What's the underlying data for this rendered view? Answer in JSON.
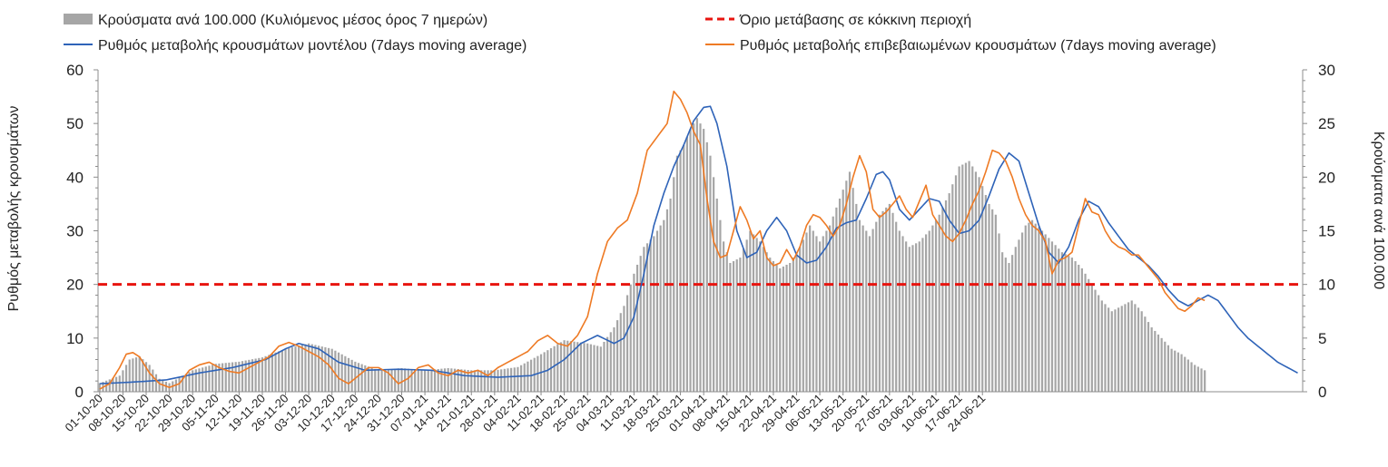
{
  "chart_data": {
    "type": "bar",
    "legend": [
      {
        "key": "cases",
        "label": "Κρούσματα ανά 100.000  (Κυλιόμενος μέσος όρος 7 ημερών)",
        "color": "#a6a6a6",
        "kind": "bar"
      },
      {
        "key": "threshold",
        "label": "Όριο μετάβασης σε κόκκινη περιοχή",
        "color": "#e8140f",
        "kind": "dashed-line"
      },
      {
        "key": "model",
        "label": "Ρυθμός μεταβολής κρουσμάτων μοντέλου (7days moving average)",
        "color": "#2e63b8",
        "kind": "line"
      },
      {
        "key": "confirmed",
        "label": "Ρυθμός μεταβολής επιβεβαιωμένων κρουσμάτων (7days moving average)",
        "color": "#ee7a24",
        "kind": "line"
      }
    ],
    "ylabel_left": "Ρυθμός μεταβολής κρουσμάτων",
    "ylabel_right": "Κρούσματα ανά 100.000",
    "ylim_left": [
      0,
      60
    ],
    "ylim_right": [
      0,
      30
    ],
    "left_ticks": [
      "0",
      "10",
      "20",
      "30",
      "40",
      "50",
      "60"
    ],
    "right_ticks": [
      "0",
      "5",
      "10",
      "15",
      "20",
      "25",
      "30"
    ],
    "threshold_left": 20,
    "x_start_day": 0,
    "x_end_day": 273,
    "x_tick_labels": [
      "01-10-20",
      "08-10-20",
      "15-10-20",
      "22-10-20",
      "29-10-20",
      "05-11-20",
      "12-11-20",
      "19-11-20",
      "26-11-20",
      "03-12-20",
      "10-12-20",
      "17-12-20",
      "24-12-20",
      "31-12-20",
      "07-01-21",
      "14-01-21",
      "21-01-21",
      "28-01-21",
      "04-02-21",
      "11-02-21",
      "18-02-21",
      "25-02-21",
      "04-03-21",
      "11-03-21",
      "18-03-21",
      "25-03-21",
      "01-04-21",
      "08-04-21",
      "15-04-21",
      "22-04-21",
      "29-04-21",
      "06-05-21",
      "13-05-21",
      "20-05-21",
      "27-05-21",
      "03-06-21",
      "10-06-21",
      "17-06-21",
      "24-06-21"
    ],
    "bars_right_axis_keypoints": [
      [
        0,
        0.8
      ],
      [
        6,
        1.5
      ],
      [
        9,
        3.0
      ],
      [
        12,
        3.3
      ],
      [
        15,
        2.5
      ],
      [
        18,
        1.2
      ],
      [
        21,
        0.8
      ],
      [
        28,
        2.0
      ],
      [
        35,
        2.6
      ],
      [
        42,
        2.8
      ],
      [
        49,
        3.2
      ],
      [
        56,
        4.0
      ],
      [
        63,
        4.5
      ],
      [
        70,
        4.0
      ],
      [
        77,
        2.8
      ],
      [
        84,
        2.0
      ],
      [
        91,
        2.2
      ],
      [
        98,
        2.0
      ],
      [
        105,
        2.2
      ],
      [
        112,
        2.0
      ],
      [
        119,
        2.0
      ],
      [
        126,
        2.3
      ],
      [
        133,
        3.5
      ],
      [
        140,
        4.8
      ],
      [
        147,
        4.5
      ],
      [
        151,
        4.2
      ],
      [
        155,
        6.0
      ],
      [
        158,
        8.0
      ],
      [
        161,
        11.0
      ],
      [
        164,
        13.5
      ],
      [
        167,
        14.5
      ],
      [
        170,
        16.0
      ],
      [
        172,
        18.0
      ],
      [
        174,
        22.0
      ],
      [
        176,
        23.0
      ],
      [
        178,
        24.5
      ],
      [
        180,
        25.5
      ],
      [
        182,
        24.5
      ],
      [
        184,
        22.0
      ],
      [
        186,
        18.0
      ],
      [
        188,
        14.0
      ],
      [
        190,
        12.0
      ],
      [
        193,
        12.5
      ],
      [
        196,
        15.0
      ],
      [
        199,
        14.0
      ],
      [
        202,
        12.5
      ],
      [
        205,
        11.5
      ],
      [
        208,
        12.0
      ],
      [
        211,
        13.5
      ],
      [
        214,
        15.5
      ],
      [
        217,
        14.0
      ],
      [
        220,
        15.5
      ],
      [
        223,
        18.0
      ],
      [
        226,
        20.5
      ],
      [
        229,
        16.0
      ],
      [
        232,
        14.5
      ],
      [
        235,
        16.5
      ],
      [
        238,
        17.5
      ],
      [
        241,
        15.0
      ],
      [
        244,
        13.5
      ],
      [
        247,
        14.0
      ],
      [
        250,
        15.0
      ],
      [
        253,
        16.5
      ],
      [
        256,
        18.5
      ],
      [
        259,
        21.0
      ],
      [
        262,
        21.5
      ],
      [
        265,
        20.0
      ],
      [
        268,
        17.5
      ],
      [
        270,
        16.5
      ],
      [
        272,
        13.0
      ],
      [
        274,
        12.0
      ],
      [
        276,
        13.5
      ],
      [
        279,
        15.5
      ],
      [
        281,
        16.0
      ],
      [
        284,
        15.0
      ],
      [
        287,
        14.0
      ],
      [
        290,
        13.0
      ],
      [
        293,
        12.5
      ],
      [
        296,
        11.5
      ],
      [
        299,
        10.0
      ],
      [
        302,
        8.5
      ],
      [
        305,
        7.5
      ],
      [
        308,
        8.0
      ],
      [
        311,
        8.5
      ],
      [
        314,
        7.5
      ],
      [
        317,
        6.0
      ],
      [
        320,
        5.0
      ],
      [
        323,
        4.0
      ],
      [
        326,
        3.5
      ],
      [
        330,
        2.5
      ],
      [
        333,
        2.0
      ]
    ],
    "model_left_axis_keypoints": [
      [
        0,
        1.5
      ],
      [
        10,
        1.8
      ],
      [
        20,
        2.2
      ],
      [
        30,
        3.5
      ],
      [
        40,
        4.5
      ],
      [
        50,
        6.0
      ],
      [
        56,
        8.0
      ],
      [
        60,
        9.0
      ],
      [
        66,
        8.0
      ],
      [
        72,
        5.5
      ],
      [
        80,
        4.0
      ],
      [
        90,
        4.2
      ],
      [
        100,
        4.0
      ],
      [
        110,
        3.0
      ],
      [
        120,
        2.7
      ],
      [
        130,
        3.0
      ],
      [
        135,
        4.0
      ],
      [
        140,
        6.0
      ],
      [
        145,
        9.0
      ],
      [
        150,
        10.5
      ],
      [
        155,
        9.0
      ],
      [
        158,
        10.0
      ],
      [
        161,
        14.0
      ],
      [
        164,
        22.0
      ],
      [
        167,
        31.0
      ],
      [
        170,
        37.0
      ],
      [
        173,
        42.0
      ],
      [
        176,
        46.0
      ],
      [
        179,
        50.5
      ],
      [
        182,
        53.0
      ],
      [
        184,
        53.2
      ],
      [
        186,
        50.0
      ],
      [
        189,
        42.0
      ],
      [
        192,
        30.0
      ],
      [
        195,
        25.0
      ],
      [
        198,
        26.0
      ],
      [
        201,
        30.0
      ],
      [
        204,
        32.5
      ],
      [
        207,
        30.0
      ],
      [
        210,
        25.5
      ],
      [
        213,
        24.0
      ],
      [
        216,
        24.5
      ],
      [
        219,
        27.0
      ],
      [
        222,
        30.5
      ],
      [
        225,
        31.5
      ],
      [
        228,
        32.0
      ],
      [
        231,
        36.0
      ],
      [
        234,
        40.5
      ],
      [
        236,
        41.0
      ],
      [
        238,
        39.5
      ],
      [
        241,
        34.0
      ],
      [
        244,
        32.0
      ],
      [
        247,
        34.0
      ],
      [
        250,
        36.0
      ],
      [
        253,
        35.5
      ],
      [
        256,
        32.0
      ],
      [
        259,
        29.5
      ],
      [
        262,
        30.0
      ],
      [
        265,
        32.0
      ],
      [
        268,
        36.5
      ],
      [
        271,
        41.5
      ],
      [
        274,
        44.5
      ],
      [
        277,
        43.0
      ],
      [
        280,
        37.0
      ],
      [
        283,
        31.0
      ],
      [
        286,
        26.0
      ],
      [
        289,
        24.0
      ],
      [
        292,
        27.0
      ],
      [
        295,
        32.0
      ],
      [
        298,
        35.5
      ],
      [
        301,
        34.5
      ],
      [
        304,
        31.5
      ],
      [
        307,
        29.0
      ],
      [
        310,
        26.5
      ],
      [
        313,
        25.0
      ],
      [
        316,
        23.5
      ],
      [
        319,
        21.5
      ],
      [
        322,
        19.0
      ],
      [
        325,
        17.0
      ],
      [
        328,
        16.0
      ],
      [
        331,
        17.0
      ],
      [
        334,
        18.0
      ],
      [
        337,
        17.0
      ],
      [
        340,
        14.5
      ],
      [
        343,
        12.0
      ],
      [
        346,
        10.0
      ],
      [
        349,
        8.5
      ],
      [
        352,
        7.0
      ],
      [
        355,
        5.5
      ],
      [
        358,
        4.5
      ],
      [
        361,
        3.5
      ]
    ],
    "confirmed_left_axis_keypoints": [
      [
        0,
        0.5
      ],
      [
        3,
        1.5
      ],
      [
        6,
        4.5
      ],
      [
        8,
        7.0
      ],
      [
        10,
        7.3
      ],
      [
        12,
        6.5
      ],
      [
        15,
        3.5
      ],
      [
        18,
        1.5
      ],
      [
        21,
        0.8
      ],
      [
        24,
        1.5
      ],
      [
        27,
        4.0
      ],
      [
        30,
        5.0
      ],
      [
        33,
        5.5
      ],
      [
        36,
        4.5
      ],
      [
        39,
        3.8
      ],
      [
        42,
        3.5
      ],
      [
        45,
        4.5
      ],
      [
        48,
        5.5
      ],
      [
        51,
        6.5
      ],
      [
        54,
        8.5
      ],
      [
        57,
        9.2
      ],
      [
        60,
        8.5
      ],
      [
        63,
        7.5
      ],
      [
        66,
        6.5
      ],
      [
        69,
        5.0
      ],
      [
        72,
        2.5
      ],
      [
        75,
        1.5
      ],
      [
        78,
        3.0
      ],
      [
        81,
        4.5
      ],
      [
        84,
        4.5
      ],
      [
        87,
        3.5
      ],
      [
        90,
        1.5
      ],
      [
        93,
        2.5
      ],
      [
        96,
        4.5
      ],
      [
        99,
        5.0
      ],
      [
        102,
        3.5
      ],
      [
        105,
        3.0
      ],
      [
        108,
        4.0
      ],
      [
        111,
        3.5
      ],
      [
        114,
        4.0
      ],
      [
        117,
        3.0
      ],
      [
        120,
        4.5
      ],
      [
        123,
        5.5
      ],
      [
        126,
        6.5
      ],
      [
        129,
        7.5
      ],
      [
        132,
        9.5
      ],
      [
        135,
        10.5
      ],
      [
        138,
        9.0
      ],
      [
        141,
        8.5
      ],
      [
        144,
        10.5
      ],
      [
        147,
        14.0
      ],
      [
        150,
        22.0
      ],
      [
        153,
        28.0
      ],
      [
        156,
        30.5
      ],
      [
        159,
        32.0
      ],
      [
        162,
        37.0
      ],
      [
        165,
        45.0
      ],
      [
        168,
        47.5
      ],
      [
        171,
        50.0
      ],
      [
        173,
        56.0
      ],
      [
        175,
        54.5
      ],
      [
        177,
        52.0
      ],
      [
        179,
        48.5
      ],
      [
        181,
        46.0
      ],
      [
        183,
        36.0
      ],
      [
        185,
        28.0
      ],
      [
        187,
        25.0
      ],
      [
        189,
        25.5
      ],
      [
        191,
        30.0
      ],
      [
        193,
        34.5
      ],
      [
        195,
        32.0
      ],
      [
        197,
        28.5
      ],
      [
        199,
        30.0
      ],
      [
        201,
        25.0
      ],
      [
        203,
        23.5
      ],
      [
        205,
        24.0
      ],
      [
        207,
        26.5
      ],
      [
        209,
        24.5
      ],
      [
        211,
        27.0
      ],
      [
        213,
        31.0
      ],
      [
        215,
        33.0
      ],
      [
        217,
        32.5
      ],
      [
        219,
        31.0
      ],
      [
        221,
        29.0
      ],
      [
        223,
        31.0
      ],
      [
        225,
        35.0
      ],
      [
        227,
        40.0
      ],
      [
        229,
        44.0
      ],
      [
        231,
        41.0
      ],
      [
        233,
        34.0
      ],
      [
        235,
        32.5
      ],
      [
        237,
        33.5
      ],
      [
        239,
        35.0
      ],
      [
        241,
        36.5
      ],
      [
        243,
        34.0
      ],
      [
        245,
        32.5
      ],
      [
        247,
        35.5
      ],
      [
        249,
        38.5
      ],
      [
        251,
        33.0
      ],
      [
        253,
        31.0
      ],
      [
        255,
        29.0
      ],
      [
        257,
        28.0
      ],
      [
        259,
        29.5
      ],
      [
        261,
        32.0
      ],
      [
        263,
        35.0
      ],
      [
        265,
        37.5
      ],
      [
        267,
        41.0
      ],
      [
        269,
        45.0
      ],
      [
        271,
        44.5
      ],
      [
        273,
        43.0
      ],
      [
        275,
        40.0
      ],
      [
        277,
        36.0
      ],
      [
        279,
        33.0
      ],
      [
        281,
        31.0
      ],
      [
        283,
        30.0
      ],
      [
        285,
        28.0
      ],
      [
        287,
        22.0
      ],
      [
        289,
        24.5
      ],
      [
        291,
        25.0
      ],
      [
        293,
        26.0
      ],
      [
        295,
        31.0
      ],
      [
        297,
        36.0
      ],
      [
        299,
        33.5
      ],
      [
        301,
        33.0
      ],
      [
        303,
        30.0
      ],
      [
        305,
        28.0
      ],
      [
        307,
        27.0
      ],
      [
        309,
        26.5
      ],
      [
        311,
        25.5
      ],
      [
        313,
        25.5
      ],
      [
        315,
        24.0
      ],
      [
        317,
        22.5
      ],
      [
        319,
        21.0
      ],
      [
        321,
        18.5
      ],
      [
        323,
        17.0
      ],
      [
        325,
        15.5
      ],
      [
        327,
        15.0
      ],
      [
        329,
        16.0
      ],
      [
        331,
        17.5
      ],
      [
        333,
        17.0
      ]
    ]
  }
}
